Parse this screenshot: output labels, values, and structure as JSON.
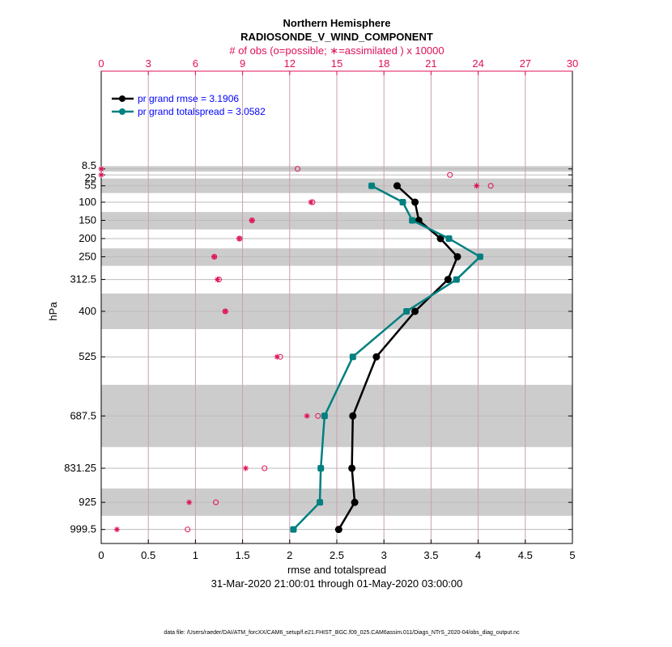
{
  "chart_data": {
    "type": "line",
    "title": "Northern Hemisphere",
    "subtitle": "RADIOSONDE_V_WIND_COMPONENT",
    "top_axis_label": "# of obs (o=possible; ∗=assimilated ) x 10000",
    "xlabel": "rmse and totalspread",
    "ylabel": "hPa",
    "time_range": "31-Mar-2020 21:00:01 through 01-May-2020 03:00:00",
    "footer": "data file: /Users/raeder/DAI/ATM_forcXX/CAM6_setup/f.e21.FHIST_BGC.f09_025.CAM6assim.011/Diags_NTrS_2020-04/obs_diag_output.nc",
    "xlim": [
      0,
      5
    ],
    "xticks": [
      "0",
      "0.5",
      "1",
      "1.5",
      "2",
      "2.5",
      "3",
      "3.5",
      "4",
      "4.5",
      "5"
    ],
    "top_xlim": [
      0,
      30
    ],
    "top_xticks": [
      "0",
      "3",
      "6",
      "9",
      "12",
      "15",
      "18",
      "21",
      "24",
      "27",
      "30"
    ],
    "ylim": [
      -260,
      1038
    ],
    "levels": [
      8.5,
      25,
      55,
      100,
      150,
      200,
      250,
      312.5,
      400,
      525,
      687.5,
      831.25,
      925,
      999.5
    ],
    "level_labels": [
      "8.5",
      "25",
      "55",
      "100",
      "150",
      "200",
      "250",
      "312.5",
      "400",
      "525",
      "687.5",
      "831.25",
      "925",
      "999.5"
    ],
    "level_bands": [
      [
        1,
        16
      ],
      [
        35,
        75
      ],
      [
        127,
        175
      ],
      [
        227,
        275
      ],
      [
        351,
        449
      ],
      [
        602,
        773
      ],
      [
        887,
        962
      ]
    ],
    "series": [
      {
        "name": "pr grand rmse = 3.1906",
        "color": "#000000",
        "levels": [
          55,
          100,
          150,
          200,
          250,
          312.5,
          400,
          525,
          687.5,
          831.25,
          925,
          999.5
        ],
        "values": [
          3.14,
          3.33,
          3.37,
          3.6,
          3.78,
          3.68,
          3.33,
          2.92,
          2.67,
          2.66,
          2.69,
          2.52
        ]
      },
      {
        "name": "pr grand totalspread = 3.0582",
        "color": "#008080",
        "levels": [
          55,
          100,
          150,
          200,
          250,
          312.5,
          400,
          525,
          687.5,
          831.25,
          925,
          999.5
        ],
        "values": [
          2.87,
          3.2,
          3.3,
          3.69,
          4.02,
          3.77,
          3.24,
          2.67,
          2.37,
          2.33,
          2.32,
          2.04
        ]
      }
    ],
    "obs_possible": [
      12.5,
      22.2,
      24.8,
      13.45,
      9.6,
      8.8,
      7.2,
      7.5,
      7.9,
      11.4,
      13.8,
      10.4,
      7.3,
      5.5
    ],
    "obs_assimilated": [
      0,
      0,
      23.9,
      13.35,
      9.6,
      8.8,
      7.2,
      7.4,
      7.9,
      11.2,
      13.1,
      9.2,
      5.6,
      1.0
    ],
    "obs_color": "#e0105a",
    "legend_text_color": "#0000ff",
    "legend_placement": "top-left"
  }
}
